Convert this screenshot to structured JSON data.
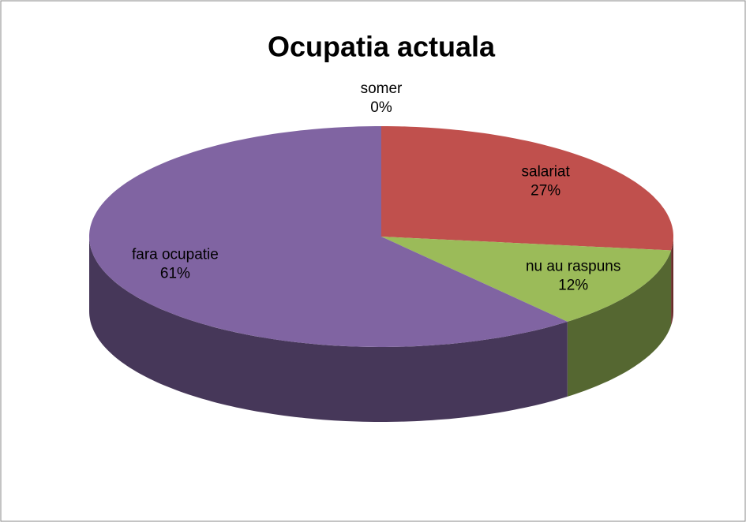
{
  "chart_data": {
    "type": "pie",
    "title": "Ocupatia actuala",
    "categories": [
      "somer",
      "salariat",
      "nu au raspuns",
      "fara ocupatie"
    ],
    "values": [
      0,
      27,
      12,
      61
    ],
    "value_labels": [
      "0%",
      "27%",
      "12%",
      "61%"
    ],
    "colors": [
      "#4f81bd",
      "#c0504d",
      "#9bbb59",
      "#8064a2"
    ]
  }
}
